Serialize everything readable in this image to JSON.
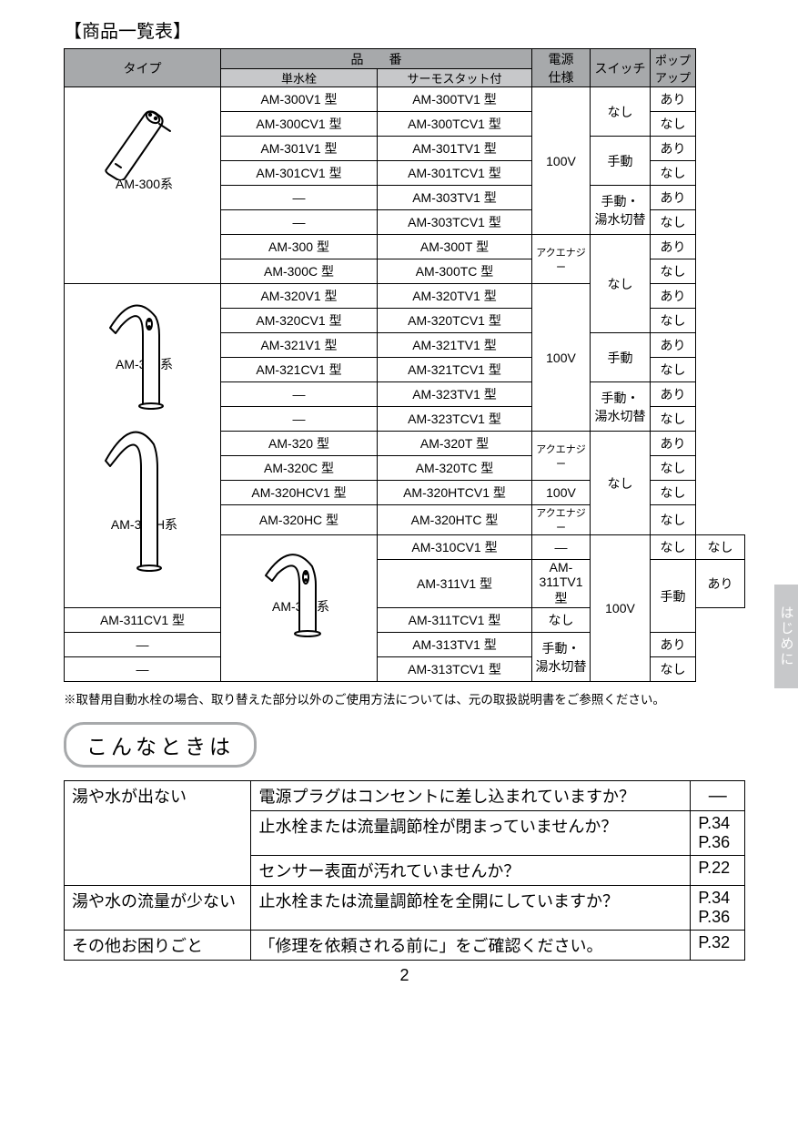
{
  "title": "【商品一覧表】",
  "colors": {
    "header_bg": "#a7a9ab",
    "subheader_bg": "#c7c8ca",
    "border": "#000000",
    "tab_bg": "#c7c8ca",
    "tab_fg": "#ffffff"
  },
  "headers": {
    "type": "タイプ",
    "model_group": "品　　番",
    "tansui": "単水栓",
    "thermo": "サーモスタット付",
    "power": "電源\n仕様",
    "switch": "スイッチ",
    "popup": "ポップ\nアップ"
  },
  "series_labels": {
    "am300": "AM-300系",
    "am320": "AM-320系",
    "am320h": "AM-320H系",
    "am310": "AM-310系"
  },
  "rows": [
    {
      "tan": "AM-300V1 型",
      "ther": "AM-300TV1 型",
      "pwr": "100V",
      "pwr_span": 6,
      "sw": "なし",
      "sw_span": 2,
      "pop": "あり",
      "type_span": 8,
      "type": "am300"
    },
    {
      "tan": "AM-300CV1 型",
      "ther": "AM-300TCV1 型",
      "pop": "なし"
    },
    {
      "tan": "AM-301V1 型",
      "ther": "AM-301TV1 型",
      "sw": "手動",
      "sw_span": 2,
      "pop": "あり"
    },
    {
      "tan": "AM-301CV1 型",
      "ther": "AM-301TCV1 型",
      "pop": "なし"
    },
    {
      "tan": "―",
      "ther": "AM-303TV1 型",
      "sw": "手動・\n湯水切替",
      "sw_span": 2,
      "pop": "あり"
    },
    {
      "tan": "―",
      "ther": "AM-303TCV1 型",
      "pop": "なし"
    },
    {
      "tan": "AM-300 型",
      "ther": "AM-300T 型",
      "pwr": "アクエナジー",
      "pwr_span": 2,
      "pwr_small": true,
      "sw": "なし",
      "sw_span": 4,
      "pop": "あり"
    },
    {
      "tan": "AM-300C 型",
      "ther": "AM-300TC 型",
      "pop": "なし"
    },
    {
      "tan": "AM-320V1 型",
      "ther": "AM-320TV1 型",
      "pwr": "100V",
      "pwr_span": 6,
      "pop": "あり",
      "type_span": 12,
      "type": "am320"
    },
    {
      "tan": "AM-320CV1 型",
      "ther": "AM-320TCV1 型",
      "pop": "なし"
    },
    {
      "tan": "AM-321V1 型",
      "ther": "AM-321TV1 型",
      "sw": "手動",
      "sw_span": 2,
      "pop": "あり"
    },
    {
      "tan": "AM-321CV1 型",
      "ther": "AM-321TCV1 型",
      "pop": "なし"
    },
    {
      "tan": "―",
      "ther": "AM-323TV1 型",
      "sw": "手動・\n湯水切替",
      "sw_span": 2,
      "pop": "あり"
    },
    {
      "tan": "―",
      "ther": "AM-323TCV1 型",
      "pop": "なし"
    },
    {
      "tan": "AM-320 型",
      "ther": "AM-320T 型",
      "pwr": "アクエナジー",
      "pwr_span": 2,
      "pwr_small": true,
      "sw": "なし",
      "sw_span": 4,
      "pop": "あり"
    },
    {
      "tan": "AM-320C 型",
      "ther": "AM-320TC 型",
      "pop": "なし"
    },
    {
      "tan": "AM-320HCV1 型",
      "ther": "AM-320HTCV1 型",
      "pwr": "100V",
      "pwr_span": 1,
      "pop": "なし"
    },
    {
      "tan": "AM-320HC 型",
      "ther": "AM-320HTC 型",
      "pwr": "アクエナジー",
      "pwr_span": 1,
      "pwr_small": true,
      "pop": "なし"
    },
    {
      "tan": "AM-310CV1 型",
      "ther": "―",
      "pwr": "100V",
      "pwr_span": 5,
      "sw": "なし",
      "sw_span": 1,
      "pop": "なし",
      "type_span": 5,
      "type": "am310"
    },
    {
      "tan": "AM-311V1 型",
      "ther": "AM-311TV1 型",
      "sw": "手動",
      "sw_span": 2,
      "pop": "あり"
    },
    {
      "tan": "AM-311CV1 型",
      "ther": "AM-311TCV1 型",
      "pop": "なし"
    },
    {
      "tan": "―",
      "ther": "AM-313TV1 型",
      "sw": "手動・\n湯水切替",
      "sw_span": 2,
      "pop": "あり"
    },
    {
      "tan": "―",
      "ther": "AM-313TCV1 型",
      "pop": "なし"
    }
  ],
  "note": "※取替用自動水栓の場合、取り替えた部分以外のご使用方法については、元の取扱説明書をご参照ください。",
  "section2_title": "こんなときは",
  "qa_rows": [
    {
      "symptom": "湯や水が出ない",
      "sym_span": 3,
      "check": "電源プラグはコンセントに差し込まれていますか？",
      "page": "―",
      "page_center": true
    },
    {
      "check": "止水栓または流量調節栓が閉まっていませんか？",
      "page": "P.34\nP.36"
    },
    {
      "check": "センサー表面が汚れていませんか？",
      "page": "P.22"
    },
    {
      "symptom": "湯や水の流量が少ない",
      "sym_span": 1,
      "check": "止水栓または流量調節栓を全開にしていますか？",
      "page": "P.34\nP.36"
    },
    {
      "symptom": "その他お困りごと",
      "sym_span": 1,
      "check": "「修理を依頼される前に」をご確認ください。",
      "page": "P.32"
    }
  ],
  "page_number": "2",
  "tab_label": "はじめに",
  "icons": {
    "am300": {
      "kind": "angled-faucet"
    },
    "am320": {
      "kind": "tall-curved-faucet"
    },
    "am320h": {
      "kind": "tall-curved-faucet-high"
    },
    "am310": {
      "kind": "short-curved-faucet"
    }
  }
}
